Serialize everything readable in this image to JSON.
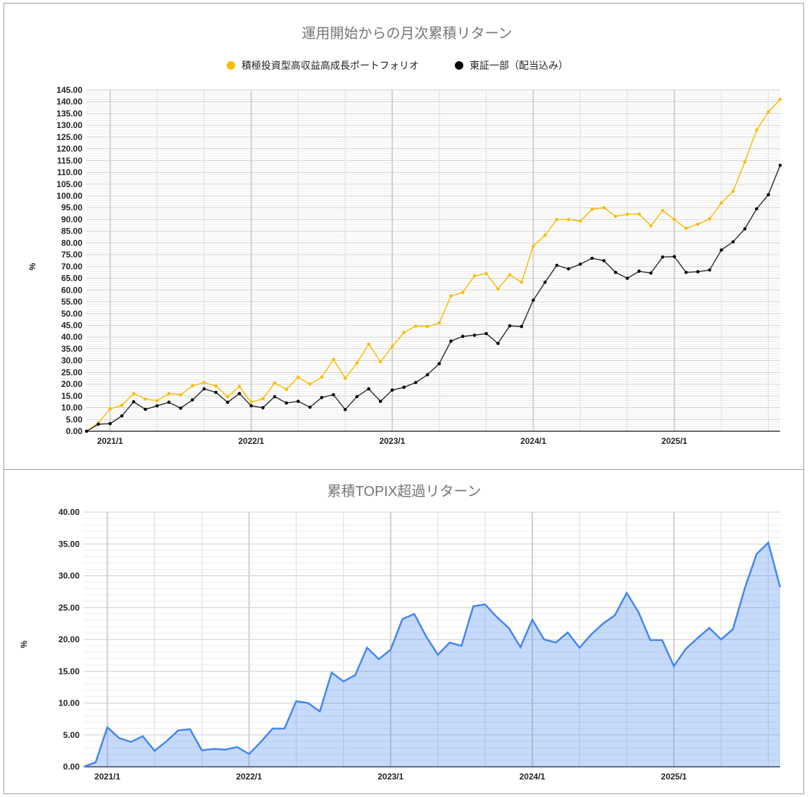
{
  "chart_data": [
    {
      "type": "line",
      "title": "運用開始からの月次累積リターン",
      "ylabel": "%",
      "xlabel": "",
      "ylim": [
        0,
        145
      ],
      "ytick_step": 5,
      "yticks_format": "0.00",
      "xtick_labels": [
        "2021/1",
        "2022/1",
        "2023/1",
        "2024/1",
        "2025/1"
      ],
      "grid": true,
      "legend_position": "top",
      "x": [
        "2020/11",
        "2020/12",
        "2021/1",
        "2021/2",
        "2021/3",
        "2021/4",
        "2021/5",
        "2021/6",
        "2021/7",
        "2021/8",
        "2021/9",
        "2021/10",
        "2021/11",
        "2021/12",
        "2022/1",
        "2022/2",
        "2022/3",
        "2022/4",
        "2022/5",
        "2022/6",
        "2022/7",
        "2022/8",
        "2022/9",
        "2022/10",
        "2022/11",
        "2022/12",
        "2023/1",
        "2023/2",
        "2023/3",
        "2023/4",
        "2023/5",
        "2023/6",
        "2023/7",
        "2023/8",
        "2023/9",
        "2023/10",
        "2023/11",
        "2023/12",
        "2024/1",
        "2024/2",
        "2024/3",
        "2024/4",
        "2024/5",
        "2024/6",
        "2024/7",
        "2024/8",
        "2024/9",
        "2024/10",
        "2024/11",
        "2024/12",
        "2025/1",
        "2025/2",
        "2025/3",
        "2025/4",
        "2025/5",
        "2025/6",
        "2025/7",
        "2025/8",
        "2025/9",
        "2025/10"
      ],
      "series": [
        {
          "name": "積極投資型高収益高成長ポートフォリオ",
          "color": "#fbbc04",
          "values": [
            0,
            3.5,
            9.5,
            11,
            16,
            13.7,
            13,
            16,
            15.5,
            19.3,
            20.7,
            19.2,
            14.7,
            19,
            12.3,
            13.8,
            20.5,
            17.8,
            23,
            20,
            23,
            30.5,
            22.5,
            29,
            37,
            29.5,
            36,
            42,
            44.7,
            44.5,
            46,
            57.5,
            59,
            66,
            67,
            60.5,
            66.5,
            63.3,
            78.7,
            83.3,
            90,
            90,
            89.3,
            94.3,
            95,
            91.3,
            92.2,
            92.3,
            87.3,
            93.8,
            90,
            86.2,
            88,
            90.2,
            97,
            102,
            114.5,
            128,
            135.7,
            141
          ]
        },
        {
          "name": "東証一部（配当込み）",
          "color": "#000000",
          "values": [
            0,
            3,
            3.2,
            6.5,
            12.5,
            9.3,
            10.8,
            12.3,
            9.8,
            13.3,
            18,
            16.5,
            12.3,
            16,
            10.8,
            10,
            14.7,
            12,
            12.7,
            10.2,
            14.3,
            15.5,
            9.2,
            14.7,
            18,
            12.7,
            17.5,
            18.7,
            20.7,
            24,
            28.7,
            38.3,
            40.3,
            40.8,
            41.5,
            37.3,
            44.8,
            44.5,
            55.7,
            63.3,
            70.5,
            69,
            71,
            73.5,
            72.5,
            67.5,
            65,
            68,
            67.2,
            74,
            74.2,
            67.5,
            67.8,
            68.5,
            77,
            80.5,
            86,
            94.5,
            100.5,
            113
          ]
        }
      ]
    },
    {
      "type": "area",
      "title": "累積TOPIX超過リターン",
      "ylabel": "%",
      "xlabel": "",
      "ylim": [
        0,
        40
      ],
      "ytick_step": 5,
      "yticks_format": "0.00",
      "xtick_labels": [
        "2021/1",
        "2022/1",
        "2023/1",
        "2024/1",
        "2025/1"
      ],
      "grid": true,
      "x": [
        "2020/11",
        "2020/12",
        "2021/1",
        "2021/2",
        "2021/3",
        "2021/4",
        "2021/5",
        "2021/6",
        "2021/7",
        "2021/8",
        "2021/9",
        "2021/10",
        "2021/11",
        "2021/12",
        "2022/1",
        "2022/2",
        "2022/3",
        "2022/4",
        "2022/5",
        "2022/6",
        "2022/7",
        "2022/8",
        "2022/9",
        "2022/10",
        "2022/11",
        "2022/12",
        "2023/1",
        "2023/2",
        "2023/3",
        "2023/4",
        "2023/5",
        "2023/6",
        "2023/7",
        "2023/8",
        "2023/9",
        "2023/10",
        "2023/11",
        "2023/12",
        "2024/1",
        "2024/2",
        "2024/3",
        "2024/4",
        "2024/5",
        "2024/6",
        "2024/7",
        "2024/8",
        "2024/9",
        "2024/10",
        "2024/11",
        "2024/12",
        "2025/1",
        "2025/2",
        "2025/3",
        "2025/4",
        "2025/5",
        "2025/6",
        "2025/7",
        "2025/8",
        "2025/9",
        "2025/10"
      ],
      "series": [
        {
          "color": "#4285f4",
          "values": [
            0,
            0.7,
            6.2,
            4.5,
            3.9,
            4.8,
            2.5,
            4,
            5.7,
            5.9,
            2.6,
            2.8,
            2.7,
            3.1,
            2.0,
            3.9,
            6.0,
            6.0,
            10.3,
            10.0,
            8.7,
            14.8,
            13.4,
            14.4,
            18.7,
            16.9,
            18.4,
            23.2,
            24.0,
            20.5,
            17.6,
            19.5,
            19.0,
            25.2,
            25.5,
            23.5,
            21.8,
            18.8,
            23.1,
            20.0,
            19.5,
            21.1,
            18.7,
            20.8,
            22.5,
            23.8,
            27.3,
            24.3,
            19.9,
            19.9,
            15.8,
            18.5,
            20.2,
            21.8,
            20.0,
            21.6,
            28.0,
            33.4,
            35.2,
            28.2
          ]
        }
      ]
    }
  ]
}
